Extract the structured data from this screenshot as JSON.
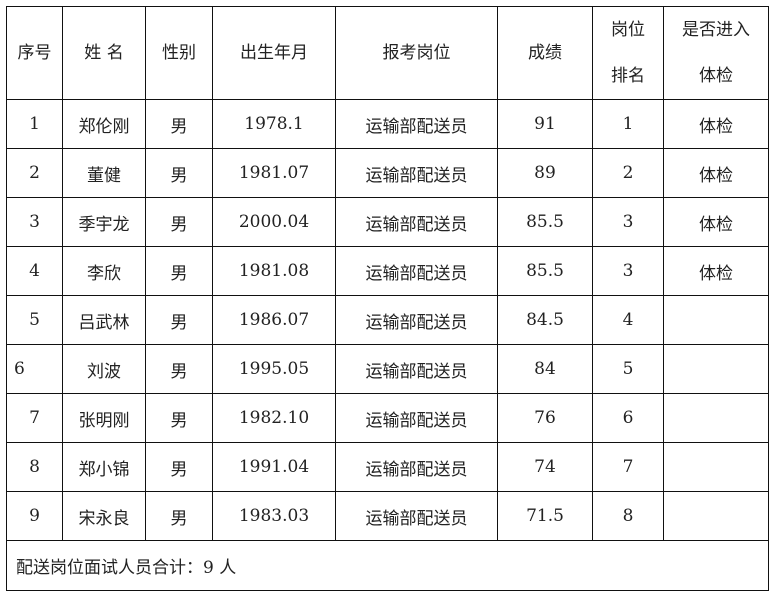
{
  "headers": [
    "序号",
    "姓 名",
    "性别",
    "出生年月",
    "报考岗位",
    "成绩",
    [
      "岗位",
      "排名"
    ],
    [
      "是否进入",
      "体检"
    ]
  ],
  "rows": [
    [
      "1",
      "郑伦刚",
      "男",
      "1978.1",
      "运输部配送员",
      "91",
      "1",
      "体检"
    ],
    [
      "2",
      "董健",
      "男",
      "1981.07",
      "运输部配送员",
      "89",
      "2",
      "体检"
    ],
    [
      "3",
      "季宇龙",
      "男",
      "2000.04",
      "运输部配送员",
      "85.5",
      "3",
      "体检"
    ],
    [
      "4",
      "李欣",
      "男",
      "1981.08",
      "运输部配送员",
      "85.5",
      "3",
      "体检"
    ],
    [
      "5",
      "吕武林",
      "男",
      "1986.07",
      "运输部配送员",
      "84.5",
      "4",
      ""
    ],
    [
      "6",
      "刘波",
      "男",
      "1995.05",
      "运输部配送员",
      "84",
      "5",
      ""
    ],
    [
      "7",
      "张明刚",
      "男",
      "1982.10",
      "运输部配送员",
      "76",
      "6",
      ""
    ],
    [
      "8",
      "郑小锦",
      "男",
      "1991.04",
      "运输部配送员",
      "74",
      "7",
      ""
    ],
    [
      "9",
      "宋永良",
      "男",
      "1983.03",
      "运输部配送员",
      "71.5",
      "8",
      ""
    ]
  ],
  "footer": "配送岗位面试人员合计：9 人"
}
